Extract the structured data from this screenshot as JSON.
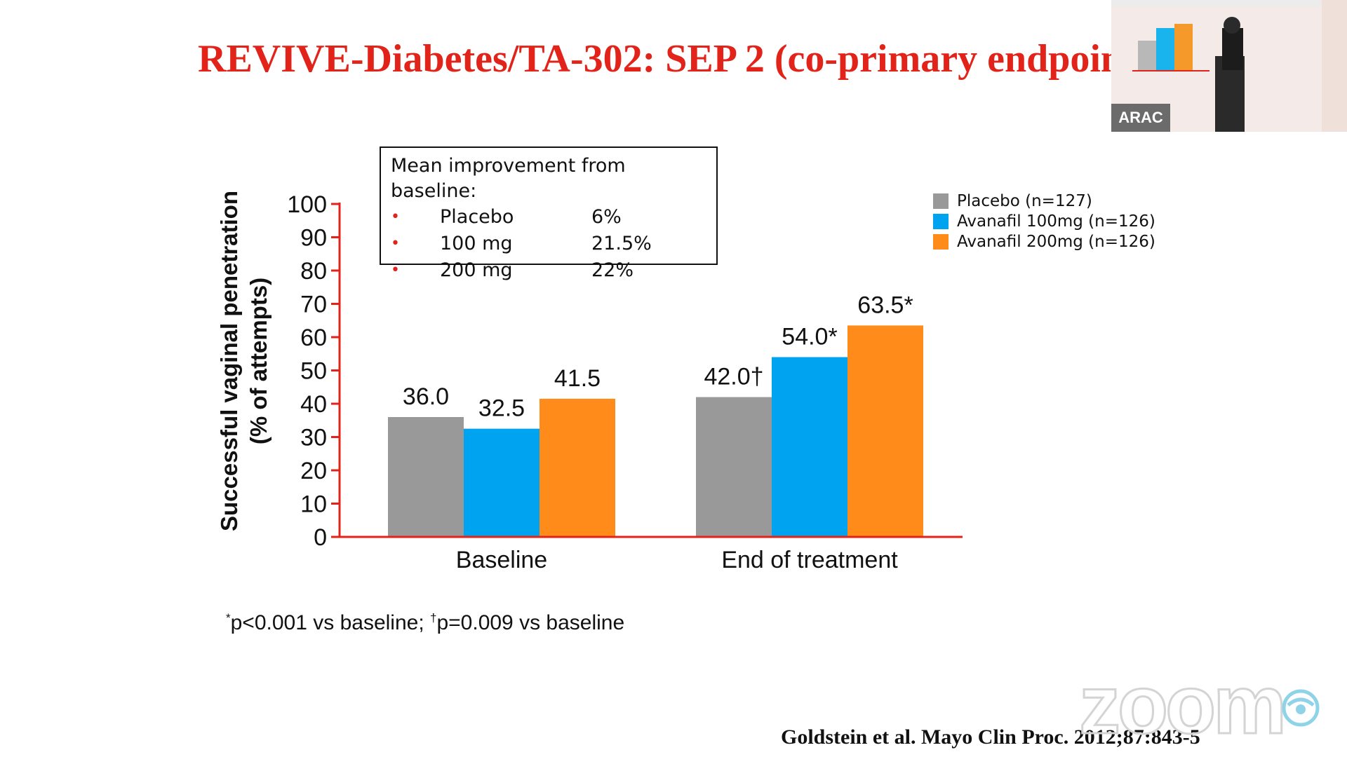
{
  "slide": {
    "title": "REVIVE-Diabetes/TA-302: SEP 2 (co-primary endpoint)",
    "footnote_star": "*",
    "footnote_part1": "p<0.001 vs baseline; ",
    "footnote_dagger": "†",
    "footnote_part2": "p=0.009 vs baseline",
    "citation": "Goldstein et al. Mayo Clin Proc. 2012;87:843-5"
  },
  "info_box": {
    "title": "Mean improvement from baseline:",
    "bullet": "•",
    "rows": [
      {
        "label": "Placebo",
        "value": "6%"
      },
      {
        "label": "100 mg",
        "value": "21.5%"
      },
      {
        "label": "200 mg",
        "value": "22%"
      }
    ]
  },
  "video_inset": {
    "badge": "ARAC"
  },
  "watermark": {
    "text": "zoom"
  },
  "colors": {
    "title": "#e2231a",
    "axis": "#e2231a",
    "placebo": "#999999",
    "avanafil_100": "#00a3ef",
    "avanafil_200": "#ff8c1a"
  },
  "chart_data": {
    "type": "bar",
    "title": "",
    "ylabel_line1": "Successful vaginal penetration",
    "ylabel_line2": "(% of attempts)",
    "xlabel": "",
    "ylim": [
      0,
      100
    ],
    "yticks": [
      0,
      10,
      20,
      30,
      40,
      50,
      60,
      70,
      80,
      90,
      100
    ],
    "categories": [
      "Baseline",
      "End of treatment"
    ],
    "series": [
      {
        "name": "Placebo (n=127)",
        "color": "#999999",
        "values": [
          36.0,
          42.0
        ],
        "labels": [
          "36.0",
          "42.0†"
        ]
      },
      {
        "name": "Avanafil 100mg (n=126)",
        "color": "#00a3ef",
        "values": [
          32.5,
          54.0
        ],
        "labels": [
          "32.5",
          "54.0*"
        ]
      },
      {
        "name": "Avanafil 200mg (n=126)",
        "color": "#ff8c1a",
        "values": [
          41.5,
          63.5
        ],
        "labels": [
          "41.5",
          "63.5*"
        ]
      }
    ],
    "legend_position": "top-right",
    "grid": false
  }
}
